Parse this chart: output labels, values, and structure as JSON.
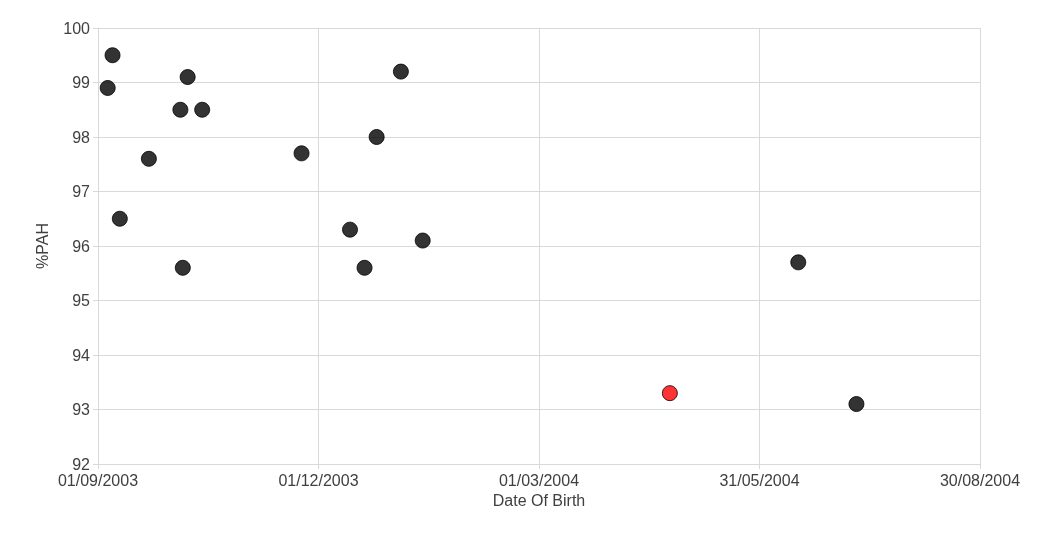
{
  "chart_data": {
    "type": "scatter",
    "xlabel": "Date Of Birth",
    "ylabel": "%PAH",
    "grid": true,
    "marker": "circle",
    "xlim": [
      "2003-09-01",
      "2004-08-30"
    ],
    "xticks": [
      {
        "value": "2003-09-01",
        "label": "01/09/2003"
      },
      {
        "value": "2003-12-01",
        "label": "01/12/2003"
      },
      {
        "value": "2004-03-01",
        "label": "01/03/2004"
      },
      {
        "value": "2004-05-31",
        "label": "31/05/2004"
      },
      {
        "value": "2004-08-30",
        "label": "30/08/2004"
      }
    ],
    "ylim": [
      92,
      100
    ],
    "yticks": [
      92,
      93,
      94,
      95,
      96,
      97,
      98,
      99,
      100
    ],
    "series": [
      {
        "color": "#000000",
        "x": [
          "2003-09-07",
          "2003-09-05",
          "2003-09-10",
          "2003-09-22",
          "2003-10-05",
          "2003-10-08",
          "2003-10-14",
          "2003-10-06",
          "2003-11-24",
          "2003-12-14",
          "2003-12-20",
          "2003-12-25",
          "2004-01-04",
          "2004-01-13",
          "2004-06-16",
          "2004-07-10"
        ],
        "values": [
          99.5,
          98.9,
          96.5,
          97.6,
          98.5,
          99.1,
          98.5,
          95.6,
          97.7,
          96.3,
          95.6,
          98.0,
          99.2,
          96.1,
          95.7,
          93.1
        ]
      },
      {
        "color": "#ff0000",
        "x": [
          "2004-04-24"
        ],
        "values": [
          93.3
        ]
      }
    ]
  }
}
